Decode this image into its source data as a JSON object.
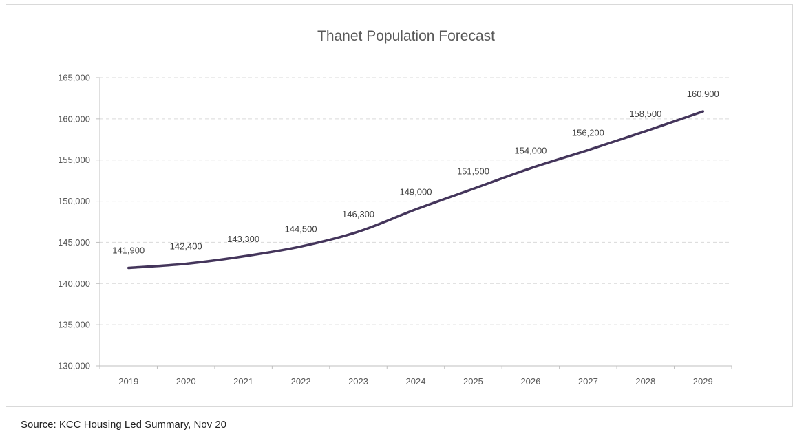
{
  "chart_data": {
    "type": "line",
    "title": "Thanet Population Forecast",
    "xlabel": "",
    "ylabel": "",
    "categories": [
      "2019",
      "2020",
      "2021",
      "2022",
      "2023",
      "2024",
      "2025",
      "2026",
      "2027",
      "2028",
      "2029"
    ],
    "series": [
      {
        "values": [
          141900,
          142400,
          143300,
          144500,
          146300,
          149000,
          151500,
          154000,
          156200,
          158500,
          160900
        ],
        "color": "#44355b"
      }
    ],
    "data_labels": [
      "141,900",
      "142,400",
      "143,300",
      "144,500",
      "146,300",
      "149,000",
      "151,500",
      "154,000",
      "156,200",
      "158,500",
      "160,900"
    ],
    "ylim": [
      130000,
      165000
    ],
    "yticks": [
      130000,
      135000,
      140000,
      145000,
      150000,
      155000,
      160000,
      165000
    ],
    "ytick_labels": [
      "130,000",
      "135,000",
      "140,000",
      "145,000",
      "150,000",
      "155,000",
      "160,000",
      "165,000"
    ],
    "grid": true,
    "legend": "none"
  },
  "footer": {
    "source": "Source: KCC Housing Led Summary, Nov 20"
  }
}
